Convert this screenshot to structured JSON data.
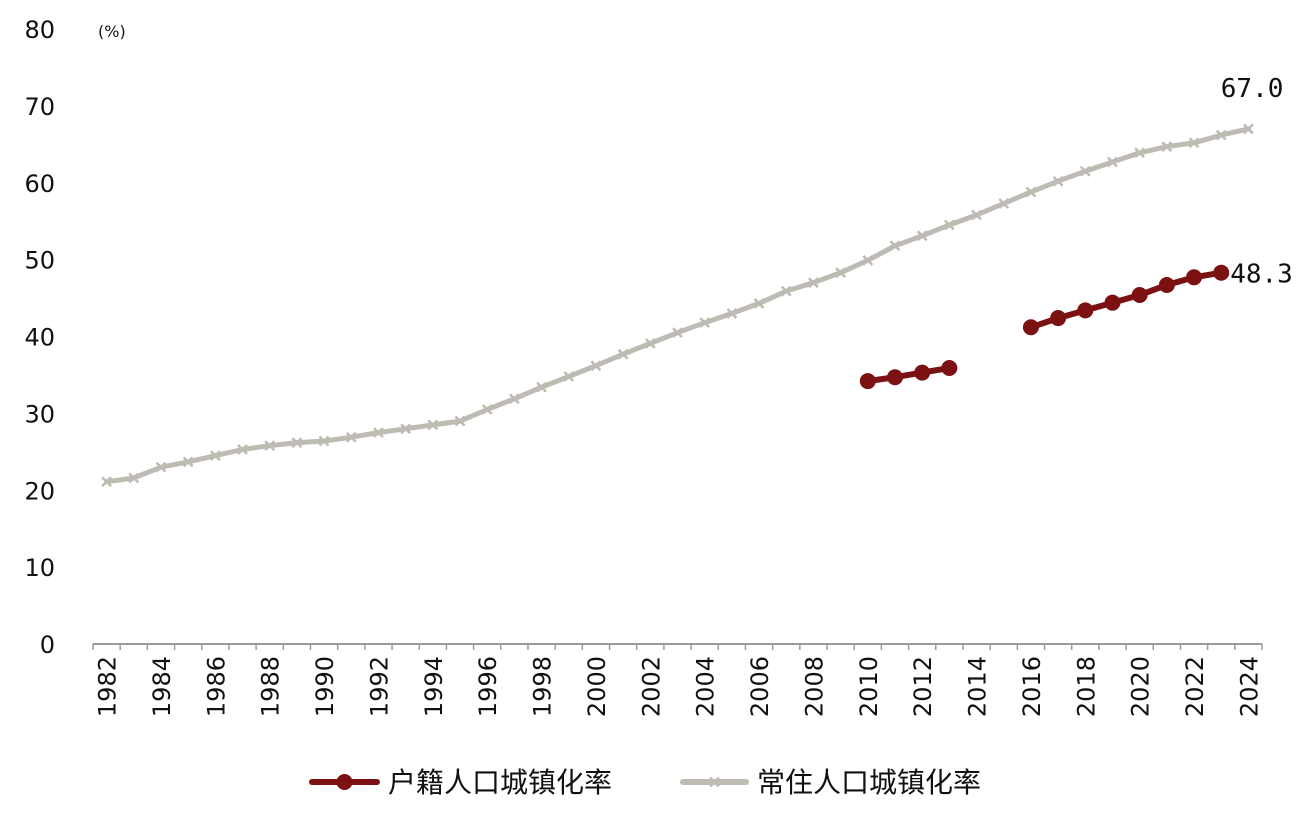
{
  "chart_data": {
    "type": "line",
    "title": "",
    "xlabel": "",
    "ylabel": "",
    "unit_label": "(%)",
    "ylim": [
      0,
      80
    ],
    "y_ticks": [
      "0",
      "10",
      "20",
      "30",
      "40",
      "50",
      "60",
      "70",
      "80"
    ],
    "x_tick_labels": [
      "1982",
      "1984",
      "1986",
      "1988",
      "1990",
      "1992",
      "1994",
      "1996",
      "1998",
      "2000",
      "2002",
      "2004",
      "2006",
      "2008",
      "2010",
      "2012",
      "2014",
      "2016",
      "2018",
      "2020",
      "2022",
      "2024"
    ],
    "grid": false,
    "legend_position": "bottom",
    "colors": {
      "huji": "#7B1113",
      "changzhu": "#BDBBB3"
    },
    "series": [
      {
        "name": "户籍人口城镇化率",
        "key": "huji",
        "marker": "circle",
        "x": [
          2010,
          2011,
          2012,
          2013,
          2016,
          2017,
          2018,
          2019,
          2020,
          2021,
          2022,
          2023
        ],
        "values": [
          34.2,
          34.7,
          35.3,
          35.9,
          41.2,
          42.4,
          43.4,
          44.4,
          45.4,
          46.7,
          47.7,
          48.3
        ]
      },
      {
        "name": "常住人口城镇化率",
        "key": "changzhu",
        "marker": "x",
        "x": [
          1982,
          1983,
          1984,
          1985,
          1986,
          1987,
          1988,
          1989,
          1990,
          1991,
          1992,
          1993,
          1994,
          1995,
          1996,
          1997,
          1998,
          1999,
          2000,
          2001,
          2002,
          2003,
          2004,
          2005,
          2006,
          2007,
          2008,
          2009,
          2010,
          2011,
          2012,
          2013,
          2014,
          2015,
          2016,
          2017,
          2018,
          2019,
          2020,
          2021,
          2022,
          2023,
          2024
        ],
        "values": [
          21.1,
          21.6,
          23.0,
          23.7,
          24.5,
          25.3,
          25.8,
          26.2,
          26.4,
          26.9,
          27.5,
          28.0,
          28.5,
          29.0,
          30.5,
          31.9,
          33.4,
          34.8,
          36.2,
          37.7,
          39.1,
          40.5,
          41.8,
          43.0,
          44.3,
          45.9,
          47.0,
          48.3,
          49.9,
          51.8,
          53.1,
          54.5,
          55.8,
          57.3,
          58.8,
          60.2,
          61.5,
          62.7,
          63.9,
          64.7,
          65.2,
          66.2,
          67.0
        ]
      }
    ],
    "annotations": [
      {
        "series": "changzhu",
        "x": 2024,
        "text": "67.0"
      },
      {
        "series": "huji",
        "x": 2023,
        "text": "48.3"
      }
    ]
  }
}
